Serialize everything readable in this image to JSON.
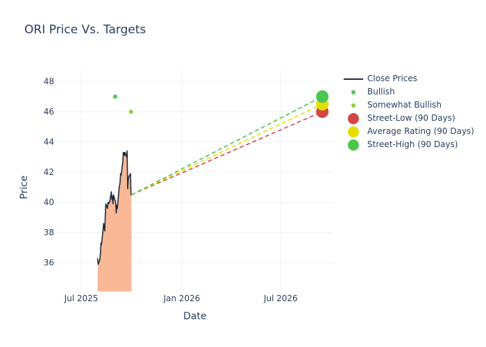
{
  "chart_data": {
    "type": "line",
    "title": "ORI Price Vs. Targets",
    "xlabel": "Date",
    "ylabel": "Price",
    "x_range": [
      "2025-05-15",
      "2026-10-05"
    ],
    "y_range": [
      34.1,
      48.8
    ],
    "x_ticks": [
      {
        "date": "2025-07-01",
        "label": "Jul 2025"
      },
      {
        "date": "2026-01-01",
        "label": "Jan 2026"
      },
      {
        "date": "2026-07-01",
        "label": "Jul 2026"
      }
    ],
    "y_ticks": [
      {
        "value": 36,
        "label": "36"
      },
      {
        "value": 38,
        "label": "38"
      },
      {
        "value": 40,
        "label": "40"
      },
      {
        "value": 42,
        "label": "42"
      },
      {
        "value": 44,
        "label": "44"
      },
      {
        "value": 46,
        "label": "46"
      },
      {
        "value": 48,
        "label": "48"
      }
    ],
    "grid": true,
    "legend_position": "right",
    "close_prices": {
      "name": "Close Prices",
      "color": "#1f2a3c",
      "fill_color": "#f9b896",
      "points": [
        [
          "2025-07-31",
          36.3
        ],
        [
          "2025-08-01",
          35.9
        ],
        [
          "2025-08-04",
          36.2
        ],
        [
          "2025-08-05",
          36.6
        ],
        [
          "2025-08-06",
          37.3
        ],
        [
          "2025-08-07",
          37.2
        ],
        [
          "2025-08-08",
          37.5
        ],
        [
          "2025-08-11",
          38.6
        ],
        [
          "2025-08-12",
          38.3
        ],
        [
          "2025-08-13",
          38.1
        ],
        [
          "2025-08-14",
          39.2
        ],
        [
          "2025-08-15",
          39.9
        ],
        [
          "2025-08-18",
          39.6
        ],
        [
          "2025-08-19",
          40.0
        ],
        [
          "2025-08-20",
          39.9
        ],
        [
          "2025-08-21",
          40.0
        ],
        [
          "2025-08-22",
          40.0
        ],
        [
          "2025-08-25",
          40.7
        ],
        [
          "2025-08-26",
          40.2
        ],
        [
          "2025-08-27",
          40.4
        ],
        [
          "2025-08-28",
          39.9
        ],
        [
          "2025-08-29",
          40.5
        ],
        [
          "2025-09-01",
          40.1
        ],
        [
          "2025-09-02",
          40.0
        ],
        [
          "2025-09-03",
          39.3
        ],
        [
          "2025-09-04",
          39.8
        ],
        [
          "2025-09-05",
          39.6
        ],
        [
          "2025-09-08",
          40.8
        ],
        [
          "2025-09-09",
          41.1
        ],
        [
          "2025-09-10",
          41.3
        ],
        [
          "2025-09-11",
          41.9
        ],
        [
          "2025-09-12",
          41.8
        ],
        [
          "2025-09-15",
          42.7
        ],
        [
          "2025-09-16",
          43.3
        ],
        [
          "2025-09-17",
          43.3
        ],
        [
          "2025-09-18",
          43.1
        ],
        [
          "2025-09-19",
          43.3
        ],
        [
          "2025-09-22",
          43.0
        ],
        [
          "2025-09-23",
          43.4
        ],
        [
          "2025-09-24",
          40.9
        ],
        [
          "2025-09-25",
          41.5
        ],
        [
          "2025-09-26",
          41.7
        ],
        [
          "2025-09-29",
          41.9
        ],
        [
          "2025-09-30",
          40.5
        ],
        [
          "2025-10-01",
          40.5
        ]
      ]
    },
    "analyst_points": [
      {
        "name": "Bullish",
        "color": "#4cc64c",
        "date": "2025-09-01",
        "value": 47
      },
      {
        "name": "Somewhat Bullish",
        "color": "#8bd13a",
        "date": "2025-09-30",
        "value": 46
      }
    ],
    "target_start": {
      "date": "2025-10-01",
      "value": 40.5
    },
    "targets": [
      {
        "name": "Street-Low (90 Days)",
        "color": "#d64545",
        "date": "2026-09-15",
        "value": 46
      },
      {
        "name": "Average Rating (90 Days)",
        "color": "#e3e000",
        "date": "2026-09-15",
        "value": 46.5
      },
      {
        "name": "Street-High (90 Days)",
        "color": "#4cc64c",
        "date": "2026-09-15",
        "value": 47
      }
    ]
  },
  "legend": [
    {
      "label": "Close Prices",
      "kind": "line",
      "color": "#1f2a3c"
    },
    {
      "label": "Bullish",
      "kind": "small-dot",
      "color": "#4cc64c"
    },
    {
      "label": "Somewhat Bullish",
      "kind": "small-dot",
      "color": "#8bd13a"
    },
    {
      "label": "Street-Low (90 Days)",
      "kind": "big-dot",
      "color": "#d64545"
    },
    {
      "label": "Average Rating (90 Days)",
      "kind": "big-dot",
      "color": "#e3e000"
    },
    {
      "label": "Street-High (90 Days)",
      "kind": "big-dot",
      "color": "#4cc64c"
    }
  ]
}
